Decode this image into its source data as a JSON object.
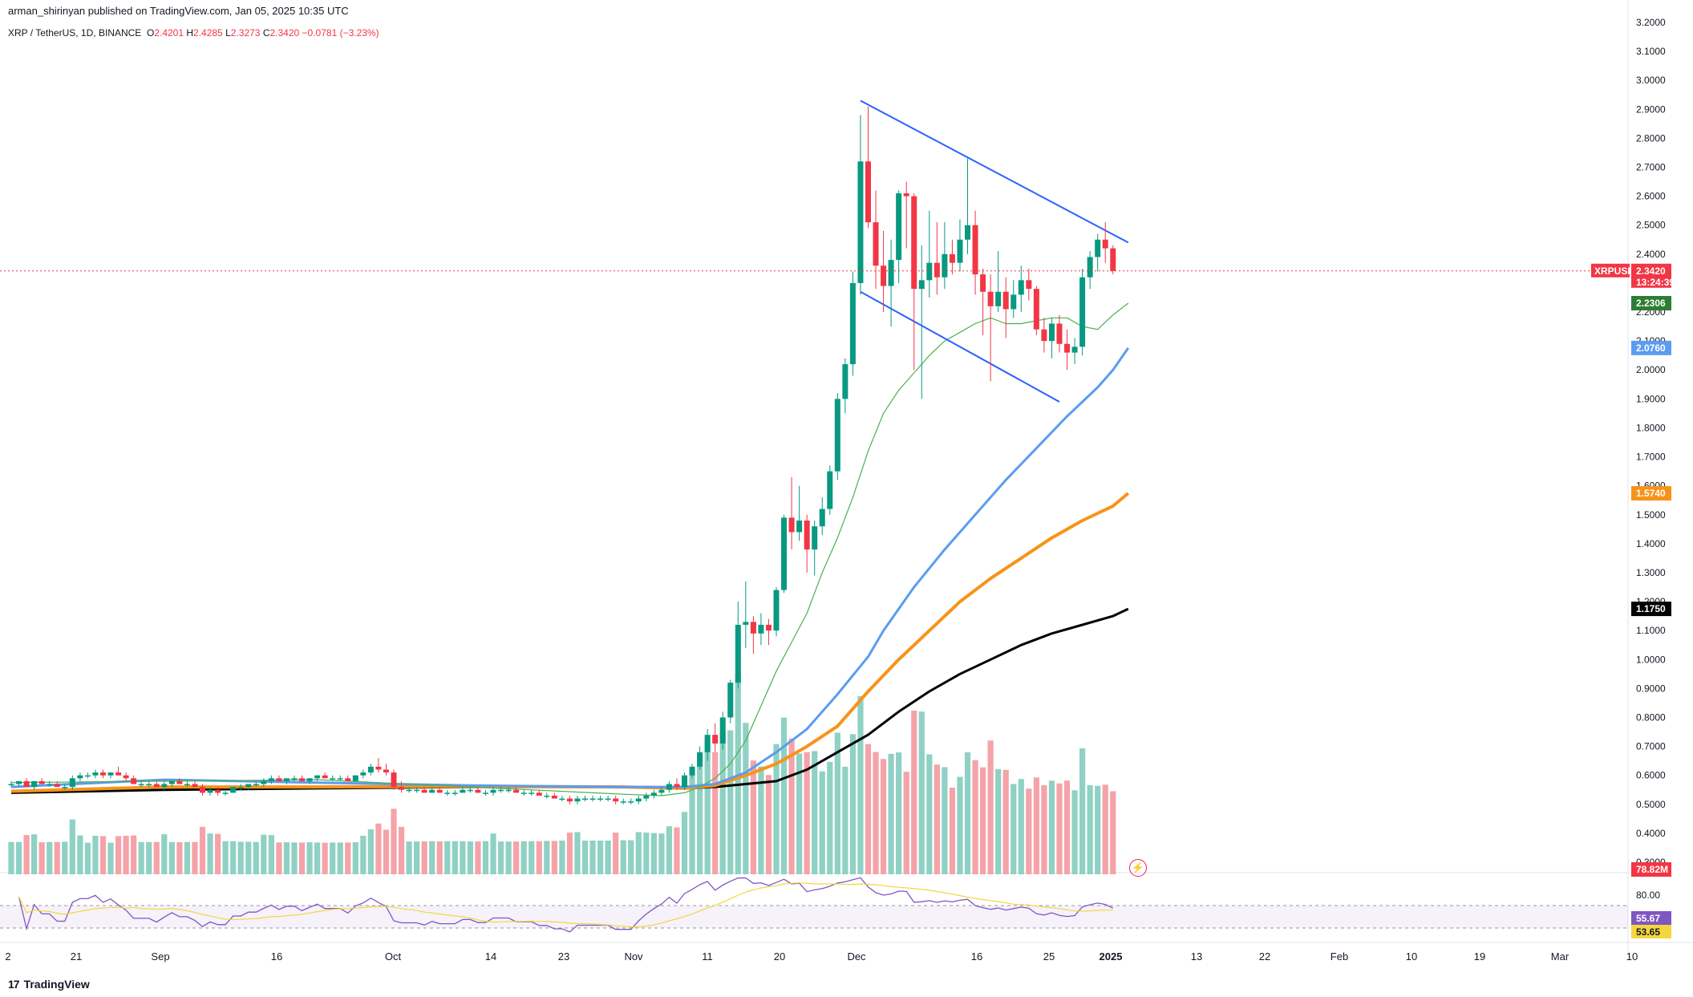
{
  "header": {
    "publisher": "arman_shirinyan published on TradingView.com, Jan 05, 2025 10:35 UTC",
    "symbol": "XRP / TetherUS, 1D, BINANCE",
    "o_label": "O",
    "o_value": "2.4201",
    "h_label": "H",
    "h_value": "2.4285",
    "l_label": "L",
    "l_value": "2.3273",
    "c_label": "C",
    "c_value": "2.3420",
    "change": "−0.0781 (−3.23%)"
  },
  "footer": {
    "brand": "TradingView",
    "brand_logo": "17"
  },
  "colors": {
    "up": "#089981",
    "down": "#f23645",
    "vol_up": "#8fd1c4",
    "vol_down": "#f5a3a8",
    "ma20": "#4caf50",
    "ma50": "#5b9cf0",
    "ma100": "#f7931a",
    "ma200": "#000000",
    "trendline": "#2962ff",
    "rsi": "#7e57c2",
    "rsi_ma": "#f5d63d"
  },
  "chart_data": {
    "type": "candlestick",
    "symbol": "XRPUSDT",
    "timeframe": "1D",
    "ylim": [
      0.3,
      3.2
    ],
    "price_ticks": [
      "3.2000",
      "3.1000",
      "3.0000",
      "2.9000",
      "2.8000",
      "2.7000",
      "2.6000",
      "2.5000",
      "2.4000",
      "2.2000",
      "2.1000",
      "2.0000",
      "1.9000",
      "1.8000",
      "1.7000",
      "1.6000",
      "1.5000",
      "1.4000",
      "1.3000",
      "1.2000",
      "1.1000",
      "1.0000",
      "0.9000",
      "0.8000",
      "0.7000",
      "0.6000",
      "0.5000",
      "0.4000",
      "0.3000"
    ],
    "x_ticks": [
      {
        "label": "2",
        "bold": false
      },
      {
        "label": "21",
        "bold": false
      },
      {
        "label": "Sep",
        "bold": false
      },
      {
        "label": "16",
        "bold": false
      },
      {
        "label": "Oct",
        "bold": false
      },
      {
        "label": "14",
        "bold": false
      },
      {
        "label": "23",
        "bold": false
      },
      {
        "label": "Nov",
        "bold": false
      },
      {
        "label": "11",
        "bold": false
      },
      {
        "label": "20",
        "bold": false
      },
      {
        "label": "Dec",
        "bold": false
      },
      {
        "label": "16",
        "bold": false
      },
      {
        "label": "25",
        "bold": false
      },
      {
        "label": "2025",
        "bold": true
      },
      {
        "label": "13",
        "bold": false
      },
      {
        "label": "22",
        "bold": false
      },
      {
        "label": "Feb",
        "bold": false
      },
      {
        "label": "10",
        "bold": false
      },
      {
        "label": "19",
        "bold": false
      },
      {
        "label": "Mar",
        "bold": false
      },
      {
        "label": "10",
        "bold": false
      }
    ],
    "price_badges": [
      {
        "label": "XRPUSDT",
        "value": "2.3420",
        "countdown": "13:24:39",
        "price": 2.342,
        "color": "#f23645"
      },
      {
        "value": "2.2306",
        "price": 2.2306,
        "color": "#2e7d32"
      },
      {
        "value": "2.0760",
        "price": 2.076,
        "color": "#5b9cf0"
      },
      {
        "value": "1.5740",
        "price": 1.574,
        "color": "#f7931a"
      },
      {
        "value": "1.1750",
        "price": 1.175,
        "color": "#000000"
      }
    ],
    "volume_badge": "78.82M",
    "rsi": {
      "levels_label": "80.00",
      "value": "55.67",
      "ma_value": "53.65"
    },
    "candles": [
      [
        0.57,
        0.58,
        0.56,
        0.57
      ],
      [
        0.57,
        0.58,
        0.56,
        0.58
      ],
      [
        0.58,
        0.59,
        0.56,
        0.56
      ],
      [
        0.56,
        0.58,
        0.55,
        0.58
      ],
      [
        0.58,
        0.59,
        0.57,
        0.57
      ],
      [
        0.57,
        0.58,
        0.56,
        0.57
      ],
      [
        0.57,
        0.58,
        0.56,
        0.56
      ],
      [
        0.56,
        0.57,
        0.55,
        0.56
      ],
      [
        0.56,
        0.6,
        0.55,
        0.59
      ],
      [
        0.59,
        0.61,
        0.58,
        0.6
      ],
      [
        0.6,
        0.61,
        0.59,
        0.6
      ],
      [
        0.6,
        0.62,
        0.59,
        0.61
      ],
      [
        0.61,
        0.62,
        0.59,
        0.6
      ],
      [
        0.6,
        0.61,
        0.59,
        0.61
      ],
      [
        0.61,
        0.63,
        0.6,
        0.6
      ],
      [
        0.6,
        0.61,
        0.58,
        0.59
      ],
      [
        0.59,
        0.6,
        0.57,
        0.57
      ],
      [
        0.57,
        0.58,
        0.56,
        0.57
      ],
      [
        0.57,
        0.58,
        0.56,
        0.57
      ],
      [
        0.57,
        0.58,
        0.56,
        0.56
      ],
      [
        0.56,
        0.58,
        0.55,
        0.57
      ],
      [
        0.57,
        0.58,
        0.56,
        0.58
      ],
      [
        0.58,
        0.59,
        0.57,
        0.57
      ],
      [
        0.57,
        0.58,
        0.56,
        0.57
      ],
      [
        0.57,
        0.58,
        0.56,
        0.56
      ],
      [
        0.56,
        0.57,
        0.53,
        0.54
      ],
      [
        0.54,
        0.56,
        0.53,
        0.55
      ],
      [
        0.55,
        0.56,
        0.53,
        0.54
      ],
      [
        0.54,
        0.55,
        0.53,
        0.54
      ],
      [
        0.54,
        0.56,
        0.54,
        0.56
      ],
      [
        0.56,
        0.57,
        0.55,
        0.56
      ],
      [
        0.56,
        0.57,
        0.55,
        0.57
      ],
      [
        0.57,
        0.58,
        0.56,
        0.57
      ],
      [
        0.57,
        0.59,
        0.56,
        0.58
      ],
      [
        0.58,
        0.6,
        0.57,
        0.59
      ],
      [
        0.59,
        0.6,
        0.58,
        0.58
      ],
      [
        0.58,
        0.59,
        0.57,
        0.59
      ],
      [
        0.59,
        0.6,
        0.58,
        0.59
      ],
      [
        0.59,
        0.6,
        0.58,
        0.58
      ],
      [
        0.58,
        0.59,
        0.57,
        0.59
      ],
      [
        0.59,
        0.6,
        0.58,
        0.6
      ],
      [
        0.6,
        0.61,
        0.59,
        0.59
      ],
      [
        0.59,
        0.6,
        0.58,
        0.59
      ],
      [
        0.59,
        0.6,
        0.58,
        0.59
      ],
      [
        0.59,
        0.6,
        0.58,
        0.58
      ],
      [
        0.58,
        0.6,
        0.58,
        0.6
      ],
      [
        0.6,
        0.62,
        0.59,
        0.61
      ],
      [
        0.61,
        0.64,
        0.6,
        0.63
      ],
      [
        0.63,
        0.66,
        0.61,
        0.62
      ],
      [
        0.62,
        0.64,
        0.6,
        0.61
      ],
      [
        0.61,
        0.62,
        0.55,
        0.56
      ],
      [
        0.56,
        0.58,
        0.54,
        0.55
      ],
      [
        0.55,
        0.56,
        0.54,
        0.55
      ],
      [
        0.55,
        0.56,
        0.54,
        0.55
      ],
      [
        0.55,
        0.56,
        0.54,
        0.54
      ],
      [
        0.54,
        0.56,
        0.54,
        0.55
      ],
      [
        0.55,
        0.56,
        0.54,
        0.54
      ],
      [
        0.54,
        0.55,
        0.53,
        0.54
      ],
      [
        0.54,
        0.55,
        0.53,
        0.54
      ],
      [
        0.54,
        0.56,
        0.54,
        0.55
      ],
      [
        0.55,
        0.56,
        0.54,
        0.55
      ],
      [
        0.55,
        0.56,
        0.54,
        0.54
      ],
      [
        0.54,
        0.55,
        0.53,
        0.54
      ],
      [
        0.54,
        0.56,
        0.53,
        0.55
      ],
      [
        0.55,
        0.56,
        0.54,
        0.55
      ],
      [
        0.55,
        0.56,
        0.54,
        0.55
      ],
      [
        0.55,
        0.56,
        0.54,
        0.54
      ],
      [
        0.54,
        0.55,
        0.53,
        0.54
      ],
      [
        0.54,
        0.55,
        0.53,
        0.54
      ],
      [
        0.54,
        0.55,
        0.53,
        0.53
      ],
      [
        0.53,
        0.54,
        0.52,
        0.53
      ],
      [
        0.53,
        0.54,
        0.52,
        0.52
      ],
      [
        0.52,
        0.53,
        0.51,
        0.52
      ],
      [
        0.52,
        0.53,
        0.5,
        0.51
      ],
      [
        0.51,
        0.53,
        0.5,
        0.52
      ],
      [
        0.52,
        0.53,
        0.51,
        0.52
      ],
      [
        0.52,
        0.53,
        0.51,
        0.52
      ],
      [
        0.52,
        0.53,
        0.51,
        0.52
      ],
      [
        0.52,
        0.53,
        0.51,
        0.52
      ],
      [
        0.52,
        0.53,
        0.5,
        0.51
      ],
      [
        0.51,
        0.52,
        0.5,
        0.51
      ],
      [
        0.51,
        0.52,
        0.5,
        0.51
      ],
      [
        0.51,
        0.53,
        0.5,
        0.52
      ],
      [
        0.52,
        0.54,
        0.51,
        0.53
      ],
      [
        0.53,
        0.55,
        0.52,
        0.54
      ],
      [
        0.54,
        0.56,
        0.53,
        0.55
      ],
      [
        0.55,
        0.58,
        0.54,
        0.57
      ],
      [
        0.57,
        0.59,
        0.55,
        0.56
      ],
      [
        0.56,
        0.61,
        0.55,
        0.6
      ],
      [
        0.6,
        0.64,
        0.59,
        0.63
      ],
      [
        0.63,
        0.7,
        0.62,
        0.68
      ],
      [
        0.68,
        0.76,
        0.65,
        0.74
      ],
      [
        0.74,
        0.78,
        0.68,
        0.71
      ],
      [
        0.71,
        0.82,
        0.69,
        0.8
      ],
      [
        0.8,
        0.93,
        0.78,
        0.92
      ],
      [
        0.92,
        1.2,
        0.9,
        1.12
      ],
      [
        1.12,
        1.27,
        1.04,
        1.13
      ],
      [
        1.13,
        1.15,
        1.02,
        1.09
      ],
      [
        1.09,
        1.16,
        1.05,
        1.12
      ],
      [
        1.12,
        1.14,
        1.05,
        1.1
      ],
      [
        1.1,
        1.25,
        1.08,
        1.24
      ],
      [
        1.24,
        1.5,
        1.23,
        1.49
      ],
      [
        1.49,
        1.63,
        1.38,
        1.44
      ],
      [
        1.44,
        1.6,
        1.41,
        1.48
      ],
      [
        1.48,
        1.5,
        1.3,
        1.38
      ],
      [
        1.38,
        1.48,
        1.29,
        1.46
      ],
      [
        1.46,
        1.56,
        1.43,
        1.52
      ],
      [
        1.52,
        1.67,
        1.5,
        1.65
      ],
      [
        1.65,
        1.92,
        1.62,
        1.9
      ],
      [
        1.9,
        2.04,
        1.85,
        2.02
      ],
      [
        2.02,
        2.34,
        1.98,
        2.3
      ],
      [
        2.3,
        2.88,
        2.26,
        2.72
      ],
      [
        2.72,
        2.91,
        2.49,
        2.51
      ],
      [
        2.51,
        2.62,
        2.28,
        2.36
      ],
      [
        2.36,
        2.48,
        2.2,
        2.29
      ],
      [
        2.29,
        2.45,
        2.15,
        2.38
      ],
      [
        2.38,
        2.62,
        2.3,
        2.61
      ],
      [
        2.61,
        2.65,
        2.42,
        2.6
      ],
      [
        2.6,
        2.61,
        2.0,
        2.28
      ],
      [
        2.28,
        2.43,
        1.9,
        2.31
      ],
      [
        2.31,
        2.55,
        2.25,
        2.37
      ],
      [
        2.37,
        2.51,
        2.26,
        2.32
      ],
      [
        2.32,
        2.51,
        2.28,
        2.4
      ],
      [
        2.4,
        2.45,
        2.33,
        2.37
      ],
      [
        2.37,
        2.52,
        2.34,
        2.45
      ],
      [
        2.45,
        2.73,
        2.4,
        2.5
      ],
      [
        2.5,
        2.55,
        2.26,
        2.33
      ],
      [
        2.33,
        2.35,
        2.12,
        2.27
      ],
      [
        2.27,
        2.33,
        1.96,
        2.22
      ],
      [
        2.22,
        2.41,
        2.2,
        2.27
      ],
      [
        2.27,
        2.32,
        2.11,
        2.21
      ],
      [
        2.21,
        2.31,
        2.18,
        2.26
      ],
      [
        2.26,
        2.36,
        2.2,
        2.31
      ],
      [
        2.31,
        2.35,
        2.24,
        2.28
      ],
      [
        2.28,
        2.29,
        2.12,
        2.14
      ],
      [
        2.14,
        2.18,
        2.06,
        2.1
      ],
      [
        2.1,
        2.18,
        2.04,
        2.16
      ],
      [
        2.16,
        2.19,
        2.06,
        2.09
      ],
      [
        2.09,
        2.14,
        2.0,
        2.06
      ],
      [
        2.06,
        2.11,
        2.02,
        2.08
      ],
      [
        2.08,
        2.35,
        2.05,
        2.32
      ],
      [
        2.32,
        2.41,
        2.28,
        2.39
      ],
      [
        2.39,
        2.47,
        2.34,
        2.45
      ],
      [
        2.45,
        2.51,
        2.37,
        2.42
      ],
      [
        2.42,
        2.43,
        2.33,
        2.342
      ]
    ],
    "volume_up": [
      0.6,
      0.5,
      0.5,
      0.55,
      0.6,
      0.55,
      0.65,
      0.5,
      0.7,
      0.6
    ],
    "ma_series": {
      "ma20": [
        [
          0,
          0.575
        ],
        [
          20,
          0.58
        ],
        [
          40,
          0.585
        ],
        [
          60,
          0.56
        ],
        [
          80,
          0.535
        ],
        [
          85,
          0.53
        ],
        [
          88,
          0.54
        ],
        [
          90,
          0.56
        ],
        [
          92,
          0.59
        ],
        [
          94,
          0.64
        ],
        [
          96,
          0.72
        ],
        [
          98,
          0.84
        ],
        [
          100,
          0.96
        ],
        [
          102,
          1.06
        ],
        [
          104,
          1.16
        ],
        [
          106,
          1.3
        ],
        [
          108,
          1.42
        ],
        [
          110,
          1.56
        ],
        [
          112,
          1.72
        ],
        [
          114,
          1.85
        ],
        [
          116,
          1.93
        ],
        [
          118,
          1.99
        ],
        [
          120,
          2.05
        ],
        [
          122,
          2.1
        ],
        [
          124,
          2.13
        ],
        [
          126,
          2.16
        ],
        [
          128,
          2.18
        ],
        [
          130,
          2.16
        ],
        [
          132,
          2.16
        ],
        [
          134,
          2.17
        ],
        [
          136,
          2.18
        ],
        [
          138,
          2.18
        ],
        [
          140,
          2.15
        ],
        [
          142,
          2.14
        ],
        [
          144,
          2.19
        ],
        [
          146,
          2.2306
        ]
      ],
      "ma50": [
        [
          0,
          0.56
        ],
        [
          20,
          0.585
        ],
        [
          40,
          0.575
        ],
        [
          60,
          0.565
        ],
        [
          80,
          0.56
        ],
        [
          88,
          0.56
        ],
        [
          92,
          0.57
        ],
        [
          96,
          0.61
        ],
        [
          100,
          0.68
        ],
        [
          104,
          0.76
        ],
        [
          108,
          0.88
        ],
        [
          112,
          1.01
        ],
        [
          114,
          1.1
        ],
        [
          118,
          1.25
        ],
        [
          122,
          1.38
        ],
        [
          126,
          1.5
        ],
        [
          130,
          1.62
        ],
        [
          134,
          1.73
        ],
        [
          138,
          1.84
        ],
        [
          140,
          1.89
        ],
        [
          142,
          1.94
        ],
        [
          144,
          2.0
        ],
        [
          146,
          2.076
        ]
      ],
      "ma100": [
        [
          0,
          0.545
        ],
        [
          20,
          0.56
        ],
        [
          40,
          0.56
        ],
        [
          60,
          0.562
        ],
        [
          80,
          0.56
        ],
        [
          88,
          0.555
        ],
        [
          92,
          0.565
        ],
        [
          96,
          0.6
        ],
        [
          100,
          0.64
        ],
        [
          104,
          0.7
        ],
        [
          108,
          0.77
        ],
        [
          112,
          0.89
        ],
        [
          116,
          1.0
        ],
        [
          120,
          1.1
        ],
        [
          124,
          1.2
        ],
        [
          128,
          1.28
        ],
        [
          132,
          1.35
        ],
        [
          136,
          1.42
        ],
        [
          140,
          1.48
        ],
        [
          144,
          1.53
        ],
        [
          146,
          1.574
        ]
      ],
      "ma200": [
        [
          0,
          0.54
        ],
        [
          20,
          0.55
        ],
        [
          40,
          0.555
        ],
        [
          60,
          0.56
        ],
        [
          80,
          0.56
        ],
        [
          88,
          0.555
        ],
        [
          92,
          0.56
        ],
        [
          96,
          0.57
        ],
        [
          100,
          0.58
        ],
        [
          104,
          0.62
        ],
        [
          108,
          0.68
        ],
        [
          112,
          0.74
        ],
        [
          116,
          0.82
        ],
        [
          120,
          0.89
        ],
        [
          124,
          0.95
        ],
        [
          128,
          1.0
        ],
        [
          132,
          1.05
        ],
        [
          136,
          1.09
        ],
        [
          140,
          1.12
        ],
        [
          144,
          1.15
        ],
        [
          146,
          1.175
        ]
      ]
    },
    "trendlines": [
      {
        "from": [
          111,
          2.93
        ],
        "to": [
          146,
          2.44
        ]
      },
      {
        "from": [
          111,
          2.27
        ],
        "to": [
          137,
          1.89
        ]
      }
    ]
  }
}
